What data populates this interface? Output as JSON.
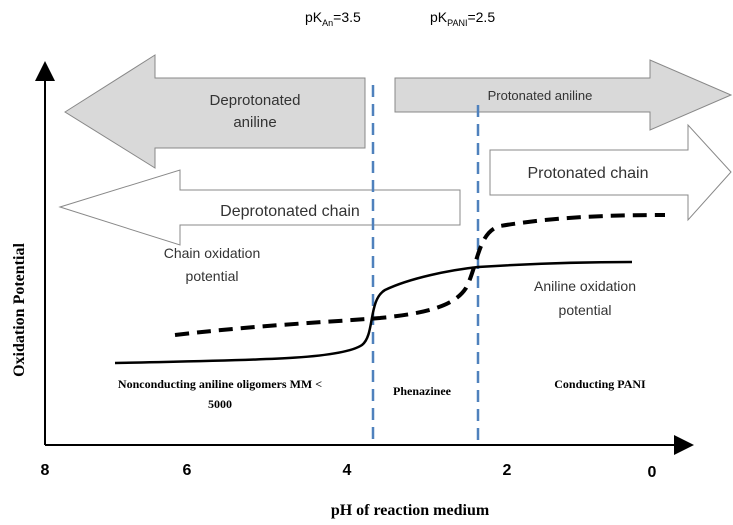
{
  "header": {
    "pka_an": {
      "base": "pK",
      "sub": "An",
      "rest": "=3.5"
    },
    "pka_pani": {
      "base": "pK",
      "sub": "PANI",
      "rest": "=2.5"
    }
  },
  "arrows": {
    "deprotonated_aniline": [
      "Deprotonated",
      "aniline"
    ],
    "protonated_aniline": "Protonated aniline",
    "protonated_chain": "Protonated chain",
    "deprotonated_chain": "Deprotonated chain"
  },
  "curves": {
    "chain_oxidation": [
      "Chain oxidation",
      "potential"
    ],
    "aniline_oxidation": [
      "Aniline oxidation",
      "potential"
    ]
  },
  "regions": {
    "nonconducting": [
      "Nonconducting aniline oligomers MM <",
      "5000"
    ],
    "phenazine": "Phenazinee",
    "conducting": "Conducting PANI"
  },
  "axes": {
    "x_label": "pH of reaction medium",
    "y_label": "Oxidation Potential",
    "x_ticks": [
      "8",
      "6",
      "4",
      "2",
      "0"
    ]
  }
}
